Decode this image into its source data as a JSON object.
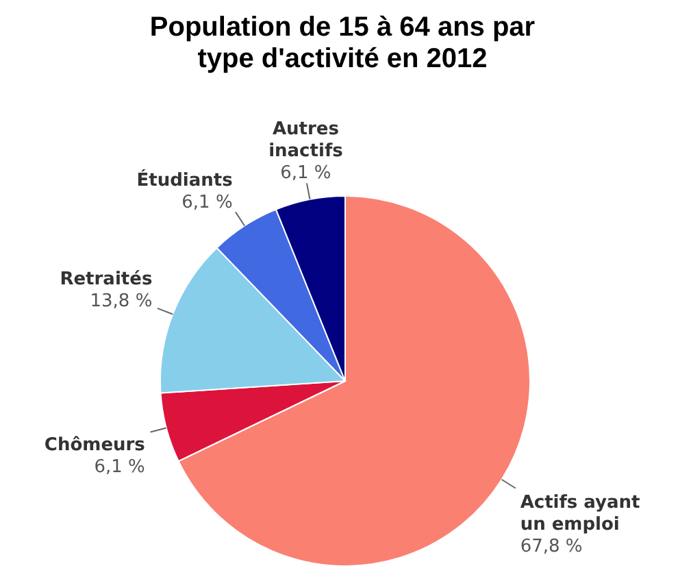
{
  "chart_data": {
    "type": "pie",
    "title": "Population de 15 à 64 ans par type d'activité en 2012",
    "categories": [
      "Actifs ayant un emploi",
      "Chômeurs",
      "Retraités",
      "Étudiants",
      "Autres inactifs"
    ],
    "values": [
      67.8,
      6.1,
      13.8,
      6.1,
      6.1
    ],
    "value_labels": [
      "67,8 %",
      "6,1 %",
      "13,8 %",
      "6,1 %",
      "6,1 %"
    ],
    "colors": [
      "#fa8072",
      "#dc143c",
      "#87ceeb",
      "#4169e1",
      "#000080"
    ]
  }
}
